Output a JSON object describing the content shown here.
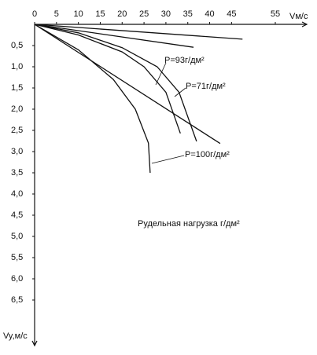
{
  "chart_data": {
    "type": "line",
    "x_label": "Vм/с",
    "y_label": "Vy,м/с",
    "xlim": [
      0,
      55
    ],
    "ylim": [
      0,
      7
    ],
    "xticks": [
      0,
      5,
      10,
      15,
      20,
      25,
      30,
      35,
      40,
      45,
      55
    ],
    "yticks": [
      {
        "value": 0.5,
        "label": "0,5"
      },
      {
        "value": 1.0,
        "label": "1,0"
      },
      {
        "value": 1.5,
        "label": "1,5"
      },
      {
        "value": 2.0,
        "label": "2,0"
      },
      {
        "value": 2.5,
        "label": "2,5"
      },
      {
        "value": 3.0,
        "label": "3,0"
      },
      {
        "value": 3.5,
        "label": "3,5"
      },
      {
        "value": 4.0,
        "label": "4,0"
      },
      {
        "value": 4.5,
        "label": "4,5"
      },
      {
        "value": 5.0,
        "label": "5,0"
      },
      {
        "value": 5.5,
        "label": "5,5"
      },
      {
        "value": 6.0,
        "label": "6,0"
      },
      {
        "value": 6.5,
        "label": "6,5"
      }
    ],
    "series": [
      {
        "color": "#111",
        "x": [
          0,
          47.5
        ],
        "values": [
          0,
          0.35
        ]
      },
      {
        "color": "#111",
        "x": [
          0,
          36.3
        ],
        "values": [
          0,
          0.54
        ]
      },
      {
        "color": "#111",
        "x": [
          0,
          10,
          20,
          28,
          33,
          37
        ],
        "values": [
          0,
          0.2,
          0.55,
          1.0,
          1.6,
          2.76
        ]
      },
      {
        "color": "#111",
        "x": [
          0,
          10,
          20,
          25,
          30,
          33.3
        ],
        "values": [
          0,
          0.25,
          0.65,
          1.0,
          1.6,
          2.57
        ]
      },
      {
        "color": "#111",
        "x": [
          0,
          42.4
        ],
        "values": [
          0,
          2.81
        ]
      },
      {
        "color": "#111",
        "x": [
          0,
          10,
          18,
          23,
          26,
          26.4
        ],
        "values": [
          0,
          0.6,
          1.3,
          2.0,
          2.8,
          3.5
        ]
      }
    ],
    "annotations": [
      "P=93г/дм²",
      "P=71г/дм²",
      "P=100г/дм²",
      "Рудельная нагрузка г/дм²"
    ]
  }
}
